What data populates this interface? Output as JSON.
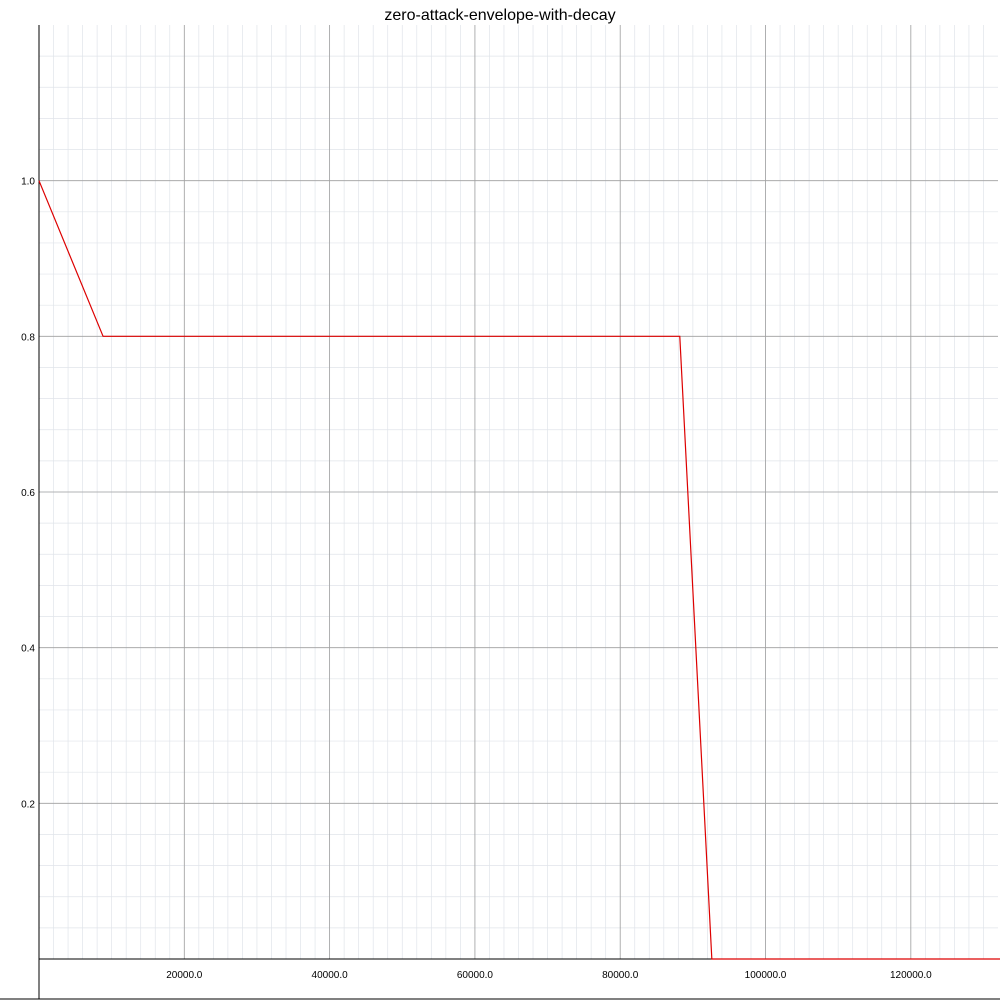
{
  "chart_data": {
    "type": "line",
    "title": "zero-attack-envelope-with-decay",
    "xlabel": "",
    "ylabel": "",
    "xlim": [
      0,
      132000
    ],
    "ylim": [
      0,
      1.2
    ],
    "x_ticks": [
      20000,
      40000,
      60000,
      80000,
      100000,
      120000
    ],
    "x_tick_labels": [
      "20000.0",
      "40000.0",
      "60000.0",
      "80000.0",
      "100000.0",
      "120000.0"
    ],
    "y_ticks": [
      0.2,
      0.4,
      0.6,
      0.8,
      1.0
    ],
    "y_tick_labels": [
      "0.2",
      "0.4",
      "0.6",
      "0.8",
      "1.0"
    ],
    "x_minor_step": 2000,
    "y_minor_step": 0.04,
    "grid": true,
    "legend": "none",
    "series": [
      {
        "color": "#dd0000",
        "x": [
          0,
          8820,
          88200,
          92610,
          132300
        ],
        "y": [
          1.0,
          0.8,
          0.8,
          0.0,
          0.0
        ]
      }
    ]
  },
  "colors": {
    "major_grid": "#a0a0a0",
    "minor_grid": "#e0e4ea",
    "axis": "#000000"
  }
}
